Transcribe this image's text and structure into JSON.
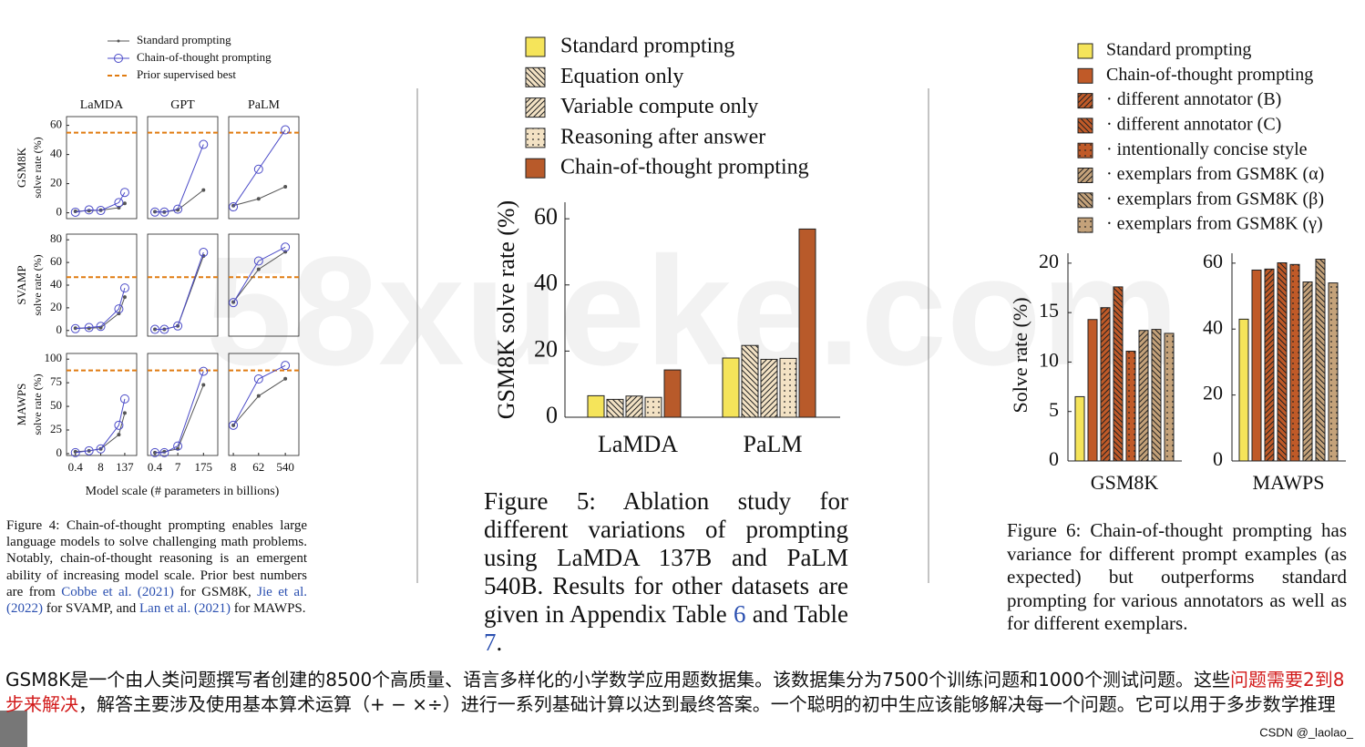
{
  "chart_data": [
    {
      "type": "line",
      "xlabel": "Model scale (# parameters in billions)",
      "xscale": "log",
      "series": [
        {
          "name": "Standard prompting",
          "color": "#555555",
          "marker": "dot"
        },
        {
          "name": "Chain-of-thought prompting",
          "color": "#4b4bc8",
          "marker": "circle"
        },
        {
          "name": "Prior supervised best",
          "color": "#e07b10",
          "dash": true
        }
      ],
      "columns": [
        {
          "name": "LaMDA",
          "x": [
            0.4,
            2,
            8,
            68,
            137
          ],
          "xlim": [
            0.14,
            560
          ],
          "xticks": [
            0.4,
            8,
            137
          ]
        },
        {
          "name": "GPT",
          "x": [
            0.4,
            1.3,
            7,
            175
          ],
          "xlim": [
            0.16,
            1050
          ],
          "xticks": [
            0.4,
            7,
            175
          ]
        },
        {
          "name": "PaLM",
          "x": [
            8,
            62,
            540
          ],
          "xlim": [
            5.5,
            1620
          ],
          "xticks": [
            8,
            62,
            540
          ]
        }
      ],
      "rows": [
        {
          "name": "GSM8K",
          "unit": "solve rate (%)",
          "ylim": [
            -4,
            66
          ],
          "yticks": [
            0,
            20,
            40,
            60
          ],
          "prior": 55,
          "panels": [
            {
              "series": [
                {
                  "values": [
                    1,
                    1.5,
                    1.8,
                    3.5,
                    6.5
                  ]
                },
                {
                  "values": [
                    0.4,
                    2,
                    1.6,
                    7,
                    14
                  ]
                }
              ]
            },
            {
              "series": [
                {
                  "values": [
                    0.8,
                    0.5,
                    2,
                    15.6
                  ]
                },
                {
                  "values": [
                    0.5,
                    0.5,
                    2.5,
                    46.9
                  ]
                }
              ]
            },
            {
              "series": [
                {
                  "values": [
                    4.9,
                    9.6,
                    17.9
                  ]
                },
                {
                  "values": [
                    4.1,
                    29.9,
                    56.9
                  ]
                }
              ]
            }
          ]
        },
        {
          "name": "SVAMP",
          "unit": "solve rate (%)",
          "ylim": [
            -5,
            85
          ],
          "yticks": [
            0,
            20,
            40,
            60,
            80
          ],
          "prior": 47,
          "panels": [
            {
              "series": [
                {
                  "values": [
                    2,
                    2,
                    2.5,
                    15,
                    29.5
                  ]
                },
                {
                  "values": [
                    1.6,
                    2.6,
                    3.6,
                    19,
                    37.5
                  ]
                }
              ]
            },
            {
              "series": [
                {
                  "values": [
                    1,
                    1,
                    4,
                    65.7
                  ]
                },
                {
                  "values": [
                    1,
                    1,
                    4,
                    68.9
                  ]
                }
              ]
            },
            {
              "series": [
                {
                  "values": [
                    25,
                    54,
                    69.4
                  ]
                },
                {
                  "values": [
                    24.6,
                    61.3,
                    73.5
                  ]
                }
              ]
            }
          ]
        },
        {
          "name": "MAWPS",
          "unit": "solve rate (%)",
          "ylim": [
            -2,
            106
          ],
          "yticks": [
            0,
            25,
            50,
            75,
            100
          ],
          "prior": 88,
          "panels": [
            {
              "series": [
                {
                  "values": [
                    2,
                    3,
                    5,
                    20,
                    43
                  ]
                },
                {
                  "values": [
                    1,
                    3,
                    5,
                    30,
                    57.9
                  ]
                }
              ]
            },
            {
              "series": [
                {
                  "values": [
                    1,
                    2,
                    5,
                    72.7
                  ]
                },
                {
                  "values": [
                    1,
                    1,
                    8,
                    87.1
                  ]
                }
              ]
            },
            {
              "series": [
                {
                  "values": [
                    30,
                    61,
                    79.2
                  ]
                },
                {
                  "values": [
                    30,
                    79,
                    93.3
                  ]
                }
              ]
            }
          ]
        }
      ]
    },
    {
      "type": "bar",
      "categories": [
        "LaMDA",
        "PaLM"
      ],
      "ylabel": "GSM8K solve rate (%)",
      "ylim": [
        0,
        65
      ],
      "yticks": [
        0,
        20,
        40,
        60
      ],
      "series": [
        {
          "name": "Standard prompting",
          "color": "#f5e45a",
          "pattern": "solid",
          "values": [
            6.5,
            17.9
          ]
        },
        {
          "name": "Equation only",
          "color": "#f3e2c4",
          "pattern": "backslash",
          "values": [
            5.4,
            21.7
          ]
        },
        {
          "name": "Variable compute only",
          "color": "#f3e2c4",
          "pattern": "slash",
          "values": [
            6.4,
            17.5
          ]
        },
        {
          "name": "Reasoning after answer",
          "color": "#f3e2c4",
          "pattern": "dots",
          "values": [
            6.0,
            17.8
          ]
        },
        {
          "name": "Chain-of-thought prompting",
          "color": "#b85a2a",
          "pattern": "solid",
          "values": [
            14.3,
            56.9
          ]
        }
      ]
    },
    {
      "type": "bar",
      "categories": [
        "GSM8K",
        "MAWPS"
      ],
      "ylabel": "Solve rate (%)",
      "axes": [
        {
          "ylim": [
            0,
            21
          ],
          "yticks": [
            0,
            5,
            10,
            15,
            20
          ]
        },
        {
          "ylim": [
            0,
            63
          ],
          "yticks": [
            0,
            20,
            40,
            60
          ]
        }
      ],
      "series": [
        {
          "name": "Standard prompting",
          "color": "#f5e45a",
          "pattern": "solid",
          "values": [
            6.5,
            43.0
          ]
        },
        {
          "name": "Chain-of-thought prompting",
          "color": "#c05a28",
          "pattern": "solid",
          "values": [
            14.3,
            57.9
          ]
        },
        {
          "name": "· different annotator (B)",
          "color": "#c05a28",
          "pattern": "slash",
          "values": [
            15.5,
            58.2
          ]
        },
        {
          "name": "· different annotator (C)",
          "color": "#c05a28",
          "pattern": "backslash",
          "values": [
            17.6,
            60.1
          ]
        },
        {
          "name": "· intentionally concise style",
          "color": "#c05a28",
          "pattern": "dots",
          "values": [
            11.1,
            59.6
          ]
        },
        {
          "name": "· exemplars from GSM8K (α)",
          "color": "#c4a27a",
          "pattern": "slash",
          "values": [
            13.2,
            54.3
          ]
        },
        {
          "name": "· exemplars from GSM8K (β)",
          "color": "#c4a27a",
          "pattern": "backslash",
          "values": [
            13.3,
            61.2
          ]
        },
        {
          "name": "· exemplars from GSM8K (γ)",
          "color": "#c4a27a",
          "pattern": "dots",
          "values": [
            12.9,
            54.0
          ]
        }
      ]
    }
  ],
  "captions": {
    "figure4": [
      {
        "text": "Figure 4:  Chain-of-thought prompting enables large language models to solve challenging math problems.  Notably, chain-of-thought reasoning is an emergent ability of increasing model scale. Prior best numbers are from "
      },
      {
        "text": "Cobbe et al. (2021)",
        "link": true
      },
      {
        "text": " for GSM8K, "
      },
      {
        "text": "Jie et al. (2022)",
        "link": true
      },
      {
        "text": " for SVAMP, and "
      },
      {
        "text": "Lan et al. (2021)",
        "link": true
      },
      {
        "text": " for MAWPS."
      }
    ],
    "figure5": [
      {
        "text": "Figure 5:   Ablation study for different variations of prompting using LaMDA 137B and PaLM 540B. Results for other datasets are given in Appendix Table "
      },
      {
        "text": "6",
        "link": true
      },
      {
        "text": " and Table "
      },
      {
        "text": "7",
        "link": true
      },
      {
        "text": "."
      }
    ],
    "figure6": [
      {
        "text": "Figure 6:  Chain-of-thought prompting has variance for different prompt examples (as expected) but outperforms standard prompting for various annotators as well as for different exemplars."
      }
    ]
  },
  "note": [
    {
      "text": "GSM8K是一个由人类问题撰写者创建的8500个高质量、语言多样化的小学数学应用题数据集。该数据集分为7500个训练问题和1000个测试问题。这些"
    },
    {
      "text": "问题需要2到8步来解决",
      "highlight": true
    },
    {
      "text": "，解答主要涉及使用基本算术运算（+ − ×÷）进行一系列基础计算以达到最终答案。一个聪明的初中生应该能够解决每一个问题。它可以用于多步数学推理"
    }
  ],
  "watermark": "58xueke.com",
  "credit": "CSDN @_laolao_"
}
